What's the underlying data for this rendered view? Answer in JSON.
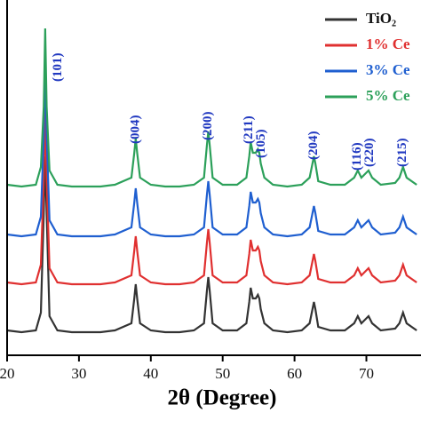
{
  "chart_data": {
    "type": "line",
    "xlabel": "2θ (Degree)",
    "xlim": [
      20,
      77.6
    ],
    "ylim": [
      0,
      100
    ],
    "xticks": [
      20,
      30,
      40,
      50,
      60,
      70
    ],
    "legend": "upper right",
    "x": [
      20,
      22,
      24,
      24.7,
      25.1,
      25.3,
      25.5,
      25.9,
      27,
      29,
      31,
      33,
      35,
      37.3,
      37.7,
      37.9,
      38.1,
      38.5,
      40,
      42,
      44,
      46,
      47.4,
      47.8,
      48.0,
      48.2,
      48.6,
      50,
      52,
      53.3,
      53.7,
      53.9,
      54.2,
      54.6,
      54.9,
      55.1,
      55.3,
      55.8,
      57,
      59,
      61,
      62.1,
      62.5,
      62.7,
      62.9,
      63.3,
      65,
      67,
      68.3,
      68.8,
      69.3,
      69.8,
      70.3,
      70.8,
      72,
      74,
      74.6,
      75.1,
      75.6,
      77
    ],
    "series": [
      {
        "name": "TiO₂",
        "color": "#333333",
        "values": [
          7,
          6.5,
          7,
          12,
          40,
          56,
          40,
          11,
          7,
          6.5,
          6.5,
          6.5,
          7,
          9,
          16,
          20,
          16,
          9,
          7,
          6.5,
          6.5,
          7,
          9,
          18,
          22,
          18,
          9,
          7,
          7,
          9,
          15,
          19,
          16,
          16,
          17,
          16,
          13,
          9,
          7,
          6.5,
          7,
          9,
          13,
          15,
          13,
          8,
          7,
          7,
          9,
          11,
          9,
          10,
          11,
          9,
          7,
          7.5,
          9,
          12,
          9,
          7
        ]
      },
      {
        "name": "1% Ce",
        "color": "#e03030",
        "values": [
          20.5,
          20,
          20.5,
          25.5,
          50,
          70,
          50,
          24.5,
          20.5,
          20,
          20,
          20,
          20.5,
          22.5,
          29.5,
          33.5,
          29.5,
          22.5,
          20.5,
          20,
          20,
          20.5,
          22.5,
          31.5,
          35.5,
          31.5,
          22.5,
          20.5,
          20.5,
          22.5,
          28.5,
          32.5,
          29.5,
          29.5,
          30.5,
          29.5,
          26.5,
          22.5,
          20.5,
          20,
          20.5,
          22.5,
          26.5,
          28.5,
          26.5,
          21.5,
          20.5,
          20.5,
          22.5,
          24.5,
          22.5,
          23.5,
          24.5,
          22.5,
          20.5,
          21,
          22.5,
          25.5,
          22.5,
          20.5
        ]
      },
      {
        "name": "3% Ce",
        "color": "#1f5fd0",
        "values": [
          34,
          33.5,
          34,
          39,
          62,
          85,
          62,
          38,
          34,
          33.5,
          33.5,
          33.5,
          34,
          36,
          43,
          47,
          43,
          36,
          34,
          33.5,
          33.5,
          34,
          36,
          45,
          49,
          45,
          36,
          34,
          34,
          36,
          42,
          46,
          43,
          43,
          44,
          43,
          40,
          36,
          34,
          33.5,
          34,
          36,
          40,
          42,
          40,
          35,
          34,
          34,
          36,
          38,
          36,
          37,
          38,
          36,
          34,
          34.5,
          36,
          39,
          36,
          34
        ]
      },
      {
        "name": "5% Ce",
        "color": "#2ca05a",
        "values": [
          48,
          47.5,
          48,
          53,
          70,
          92,
          70,
          52,
          48,
          47.5,
          47.5,
          47.5,
          48,
          50,
          57,
          61,
          57,
          50,
          48,
          47.5,
          47.5,
          48,
          50,
          59,
          63,
          59,
          50,
          48,
          48,
          50,
          56,
          60,
          57,
          57,
          58,
          57,
          54,
          50,
          48,
          47.5,
          48,
          50,
          54,
          56,
          54,
          49,
          48,
          48,
          50,
          52,
          50,
          51,
          52,
          50,
          48,
          48.5,
          50,
          53,
          50,
          48
        ]
      }
    ],
    "annotations": [
      {
        "text": "(101)",
        "x": 27.1
      },
      {
        "text": "(004)",
        "x": 37.9
      },
      {
        "text": "(200)",
        "x": 48.0
      },
      {
        "text": "(211)",
        "x": 53.7
      },
      {
        "text": "(105)",
        "x": 55.4
      },
      {
        "text": "(204)",
        "x": 62.7
      },
      {
        "text": "(116)",
        "x": 68.8
      },
      {
        "text": "(220)",
        "x": 70.5
      },
      {
        "text": "(215)",
        "x": 75.1
      }
    ]
  }
}
